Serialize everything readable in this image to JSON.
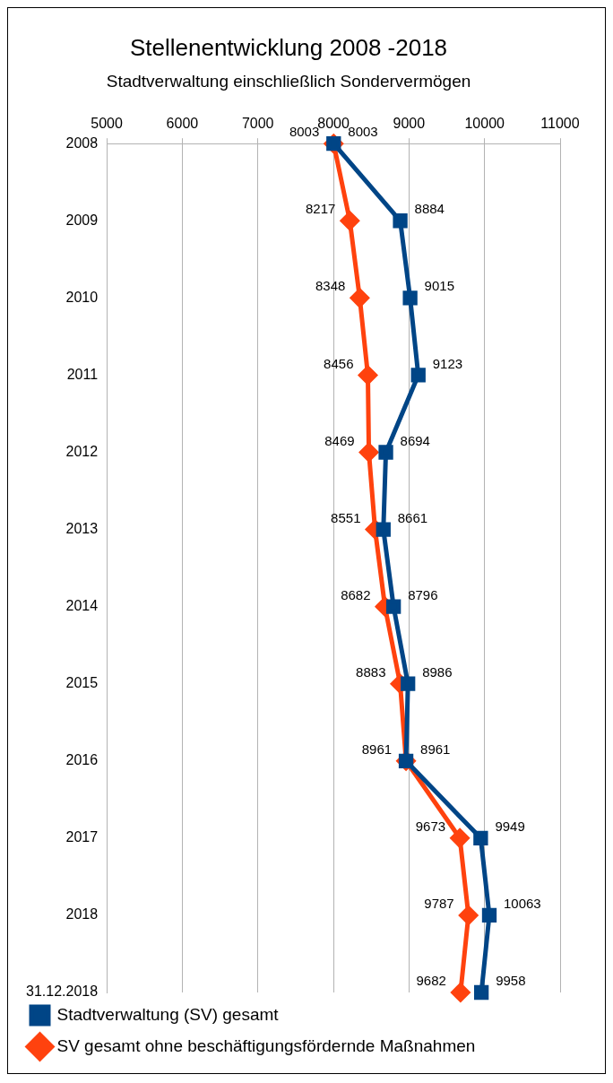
{
  "chart_data": {
    "type": "line",
    "title": "Stellenentwicklung 2008 -2018",
    "subtitle": "Stadtverwaltung einschließlich Sondervermögen",
    "categories": [
      "2008",
      "2009",
      "2010",
      "2011",
      "2012",
      "2013",
      "2014",
      "2015",
      "2016",
      "2017",
      "2018",
      "31.12.2018"
    ],
    "series": [
      {
        "name": "Stadtverwaltung (SV) gesamt",
        "color": "#004586",
        "marker": "square",
        "values": [
          8003,
          8884,
          9015,
          9123,
          8694,
          8661,
          8796,
          8986,
          8961,
          9949,
          10063,
          9958
        ]
      },
      {
        "name": "SV gesamt ohne beschäftigungsfördernde Maßnahmen",
        "color": "#ff420e",
        "marker": "diamond",
        "values": [
          8003,
          8217,
          8348,
          8456,
          8469,
          8551,
          8682,
          8883,
          8961,
          9673,
          9787,
          9682
        ]
      }
    ],
    "orientation": "horizontal",
    "xlim": [
      5000,
      11000
    ],
    "xticks": [
      5000,
      6000,
      7000,
      8000,
      9000,
      10000,
      11000
    ],
    "grid": "x",
    "legend": "bottom",
    "data_labels": true,
    "line_style": "solid"
  }
}
